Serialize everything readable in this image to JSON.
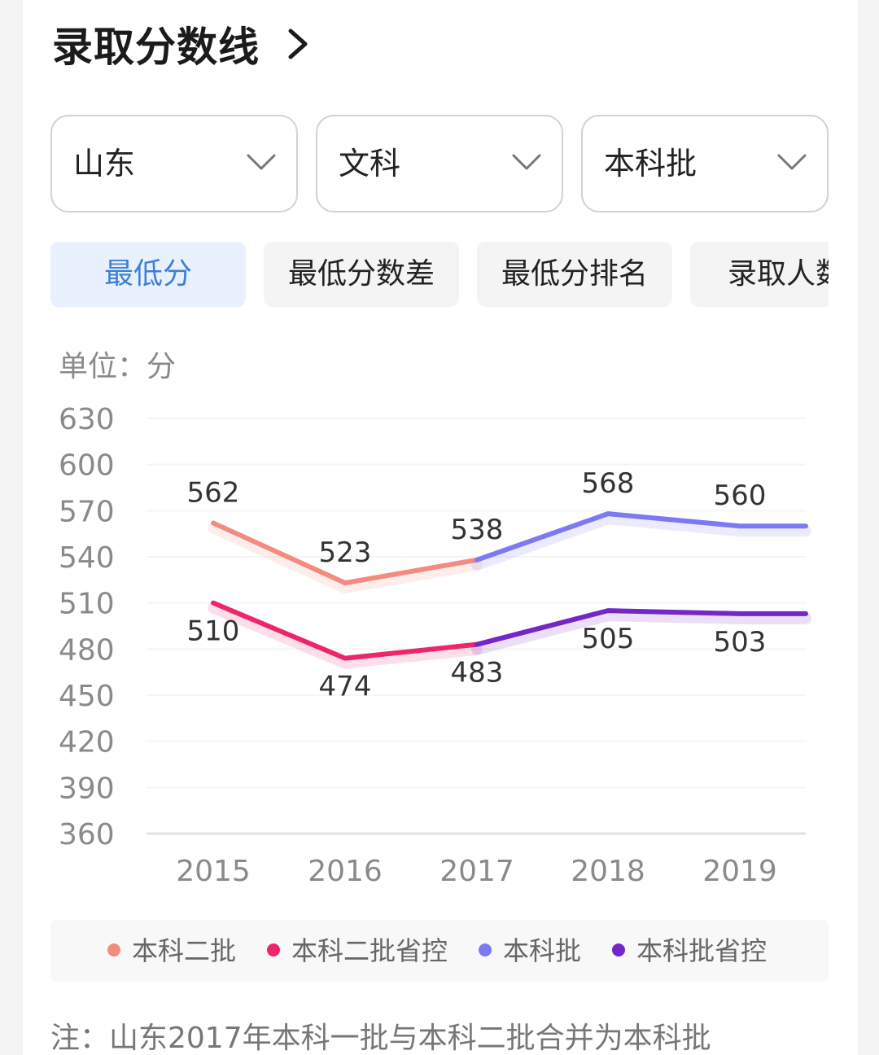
{
  "header": {
    "title": "录取分数线",
    "chevron_icon": "chevron-right-icon"
  },
  "filters": [
    {
      "value": "山东",
      "icon": "chevron-down-icon"
    },
    {
      "value": "文科",
      "icon": "chevron-down-icon"
    },
    {
      "value": "本科批",
      "icon": "chevron-down-icon"
    }
  ],
  "tabs": [
    {
      "label": "最低分",
      "active": true
    },
    {
      "label": "最低分数差",
      "active": false
    },
    {
      "label": "最低分排名",
      "active": false
    },
    {
      "label": "录取人数",
      "active": false
    }
  ],
  "colors": {
    "accent": "#3f7fd9",
    "tab_active_bg": "#e8f1fd"
  },
  "chart_data": {
    "type": "line",
    "unit_label": "单位：分",
    "categories": [
      "2015",
      "2016",
      "2017",
      "2018",
      "2019"
    ],
    "ylim": [
      360,
      630
    ],
    "yticks": [
      630,
      600,
      570,
      540,
      510,
      480,
      450,
      420,
      390,
      360
    ],
    "grid": true,
    "legend_position": "bottom",
    "series": [
      {
        "name": "本科二批",
        "color": "#f48b80",
        "values": [
          562,
          523,
          538,
          null,
          null
        ]
      },
      {
        "name": "本科二批省控",
        "color": "#ee2667",
        "values": [
          510,
          474,
          483,
          null,
          null
        ]
      },
      {
        "name": "本科批",
        "color": "#7d79f4",
        "values": [
          null,
          null,
          538,
          568,
          560
        ]
      },
      {
        "name": "本科批省控",
        "color": "#7426c6",
        "values": [
          null,
          null,
          483,
          505,
          503
        ]
      }
    ],
    "labels": [
      {
        "text": "562",
        "value": 562,
        "category": "2015",
        "pos": "above"
      },
      {
        "text": "523",
        "value": 523,
        "category": "2016",
        "pos": "above"
      },
      {
        "text": "538",
        "value": 538,
        "category": "2017",
        "pos": "above"
      },
      {
        "text": "568",
        "value": 568,
        "category": "2018",
        "pos": "above"
      },
      {
        "text": "560",
        "value": 560,
        "category": "2019",
        "pos": "above"
      },
      {
        "text": "510",
        "value": 510,
        "category": "2015",
        "pos": "below"
      },
      {
        "text": "474",
        "value": 474,
        "category": "2016",
        "pos": "below"
      },
      {
        "text": "483",
        "value": 483,
        "category": "2017",
        "pos": "below"
      },
      {
        "text": "505",
        "value": 505,
        "category": "2018",
        "pos": "below"
      },
      {
        "text": "503",
        "value": 503,
        "category": "2019",
        "pos": "below"
      }
    ]
  },
  "legend": [
    {
      "label": "本科二批",
      "color": "#f48b80"
    },
    {
      "label": "本科二批省控",
      "color": "#ee2667"
    },
    {
      "label": "本科批",
      "color": "#7d79f4"
    },
    {
      "label": "本科批省控",
      "color": "#7426c6"
    }
  ],
  "note": "注：山东2017年本科一批与本科二批合并为本科批"
}
